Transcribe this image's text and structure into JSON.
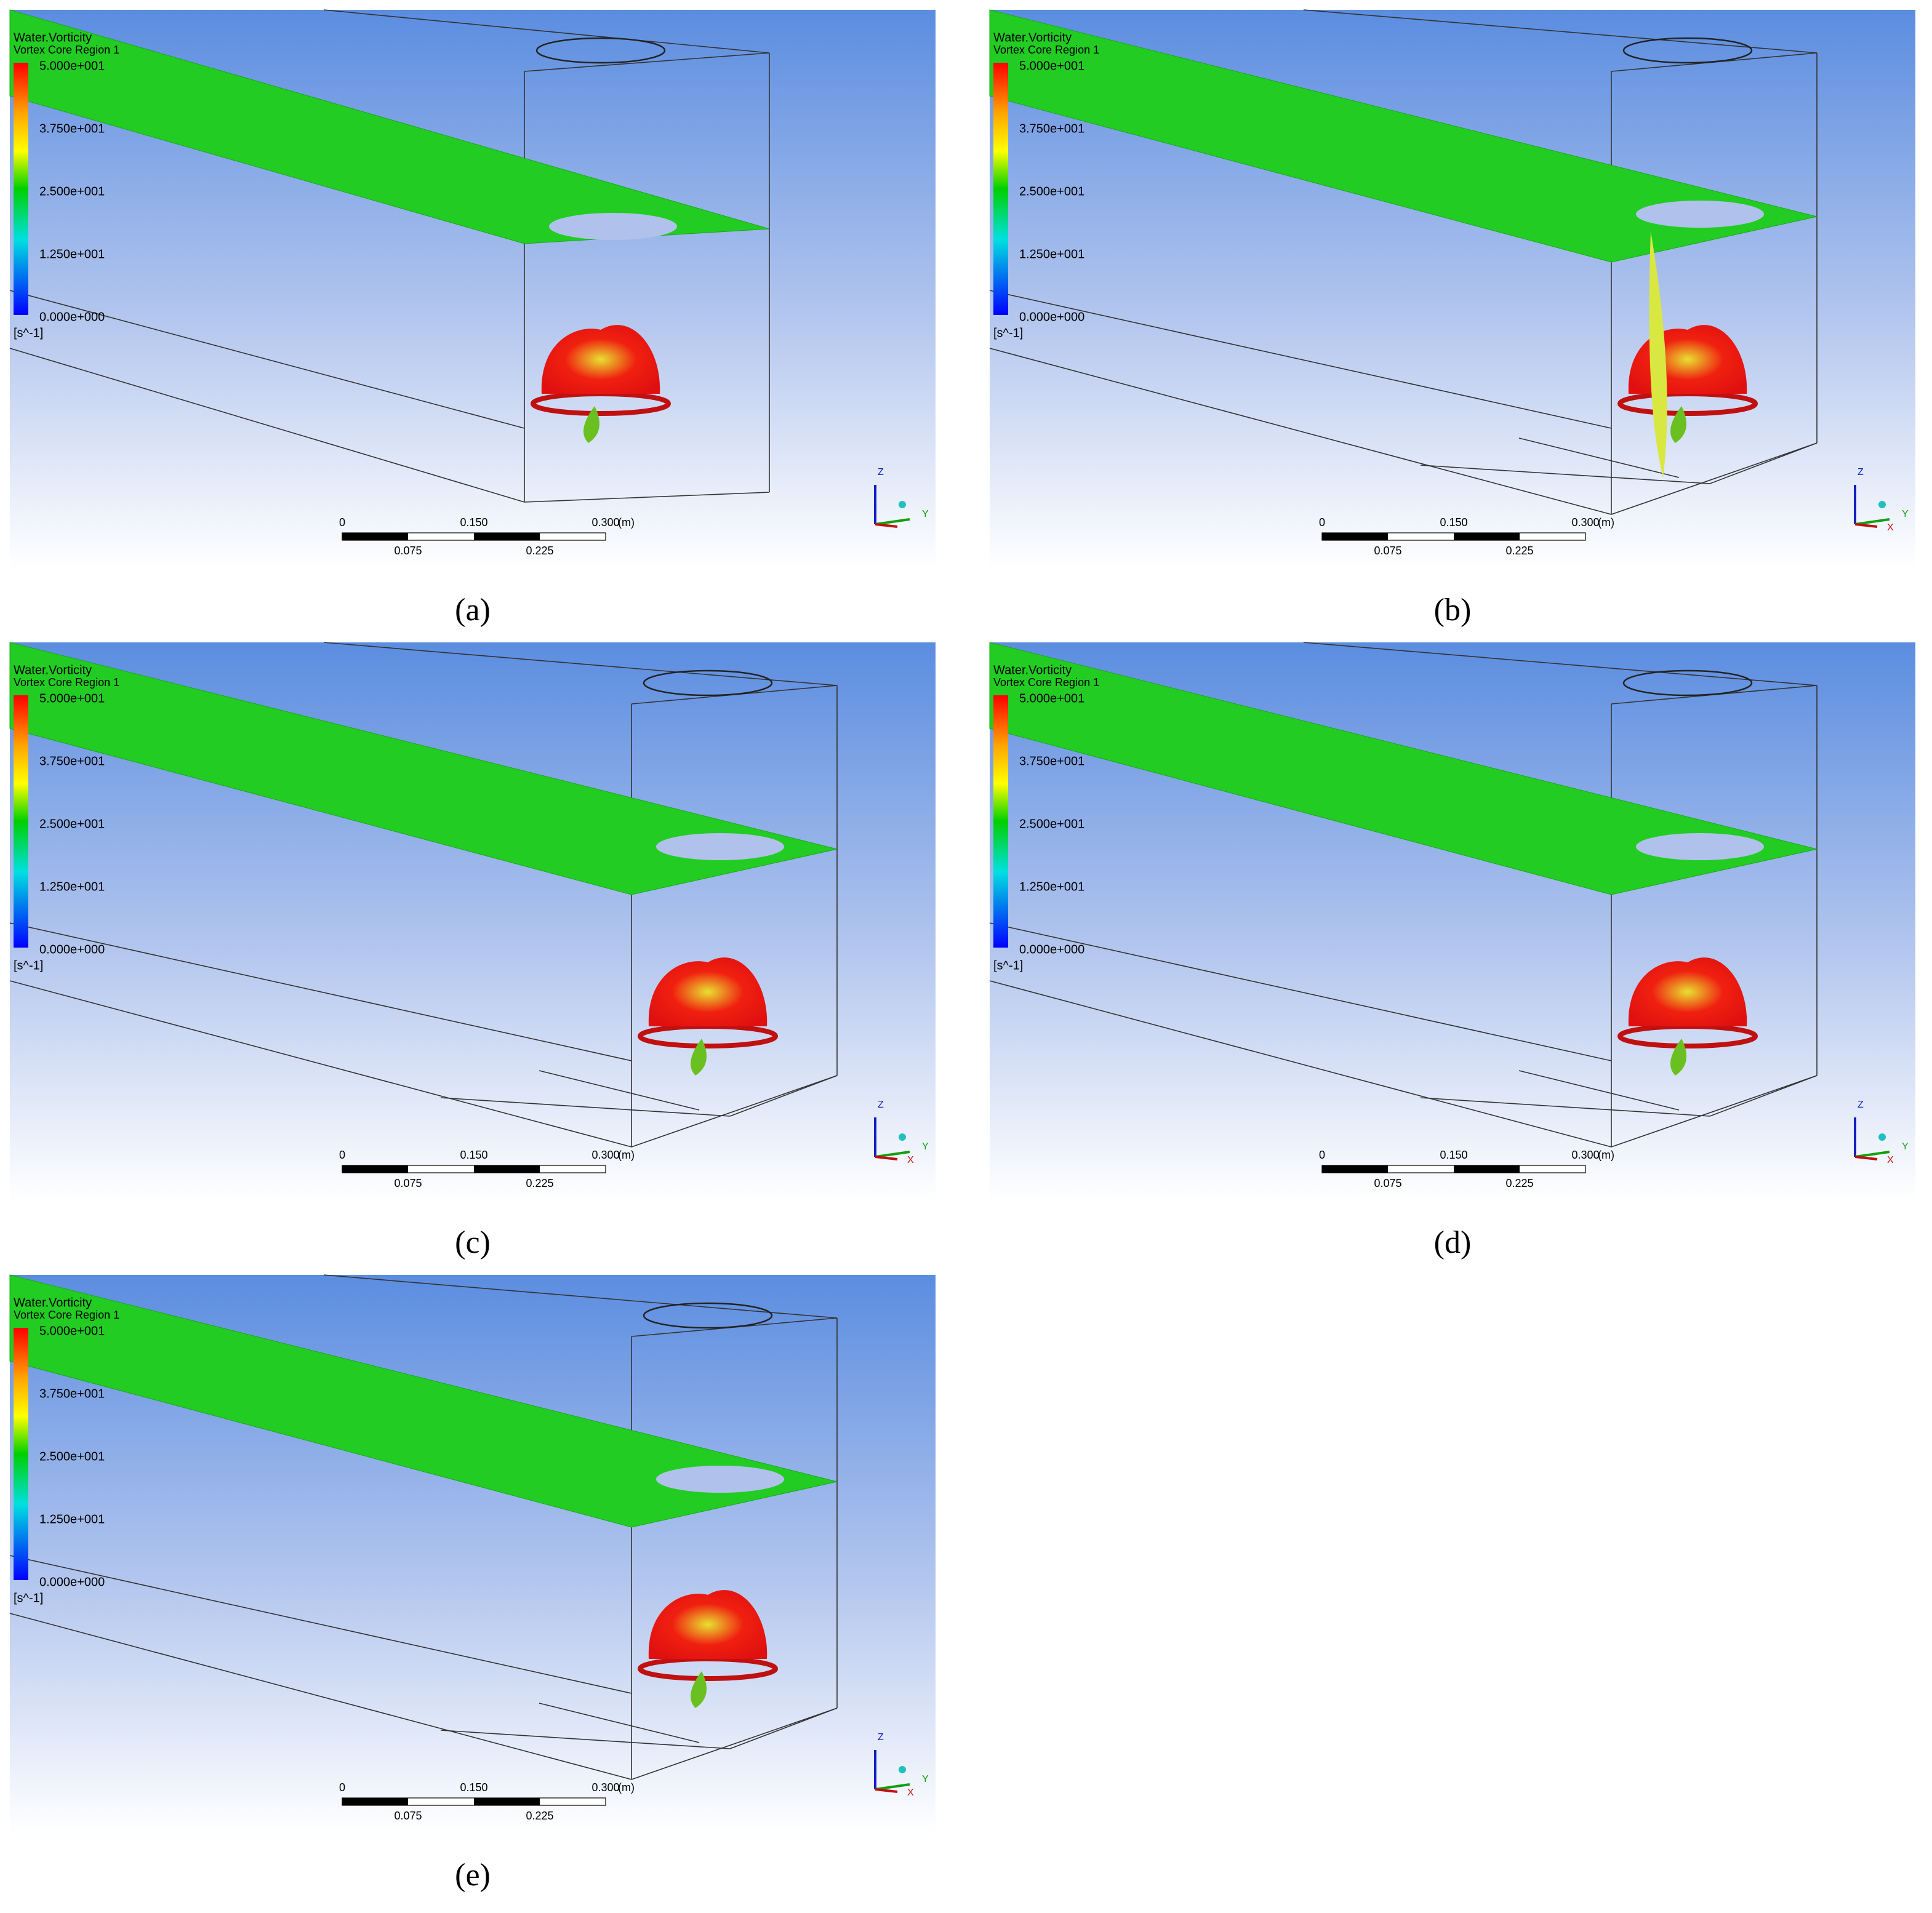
{
  "panels": [
    {
      "caption": "(a)",
      "legend": {
        "title": "Water.Vorticity",
        "subtitle": "Vortex Core Region 1",
        "ticks": [
          "5.000e+001",
          "3.750e+001",
          "2.500e+001",
          "1.250e+001",
          "0.000e+000"
        ],
        "unit": "[s^-1]"
      },
      "scale_bar": {
        "top": [
          "0",
          "0.150",
          "0.300"
        ],
        "unit": "(m)",
        "bottom": [
          "0.075",
          "0.225"
        ]
      },
      "axes": [
        "Z",
        "Y"
      ]
    },
    {
      "caption": "(b)",
      "legend": {
        "title": "Water.Vorticity",
        "subtitle": "Vortex Core Region 1",
        "ticks": [
          "5.000e+001",
          "3.750e+001",
          "2.500e+001",
          "1.250e+001",
          "0.000e+000"
        ],
        "unit": "[s^-1]"
      },
      "scale_bar": {
        "top": [
          "0",
          "0.150",
          "0.300"
        ],
        "unit": "(m)",
        "bottom": [
          "0.075",
          "0.225"
        ]
      },
      "axes": [
        "Z",
        "Y",
        "X"
      ]
    },
    {
      "caption": "(c)",
      "legend": {
        "title": "Water.Vorticity",
        "subtitle": "Vortex Core Region 1",
        "ticks": [
          "5.000e+001",
          "3.750e+001",
          "2.500e+001",
          "1.250e+001",
          "0.000e+000"
        ],
        "unit": "[s^-1]"
      },
      "scale_bar": {
        "top": [
          "0",
          "0.150",
          "0.300"
        ],
        "unit": "(m)",
        "bottom": [
          "0.075",
          "0.225"
        ]
      },
      "axes": [
        "Z",
        "Y",
        "X"
      ]
    },
    {
      "caption": "(d)",
      "legend": {
        "title": "Water.Vorticity",
        "subtitle": "Vortex Core Region 1",
        "ticks": [
          "5.000e+001",
          "3.750e+001",
          "2.500e+001",
          "1.250e+001",
          "0.000e+000"
        ],
        "unit": "[s^-1]"
      },
      "scale_bar": {
        "top": [
          "0",
          "0.150",
          "0.300"
        ],
        "unit": "(m)",
        "bottom": [
          "0.075",
          "0.225"
        ]
      },
      "axes": [
        "Z",
        "Y",
        "X"
      ]
    },
    {
      "caption": "(e)",
      "legend": {
        "title": "Water.Vorticity",
        "subtitle": "Vortex Core Region 1",
        "ticks": [
          "5.000e+001",
          "3.750e+001",
          "2.500e+001",
          "1.250e+001",
          "0.000e+000"
        ],
        "unit": "[s^-1]"
      },
      "scale_bar": {
        "top": [
          "0",
          "0.150",
          "0.300"
        ],
        "unit": "(m)",
        "bottom": [
          "0.075",
          "0.225"
        ]
      },
      "axes": [
        "Z",
        "Y",
        "X"
      ]
    }
  ]
}
